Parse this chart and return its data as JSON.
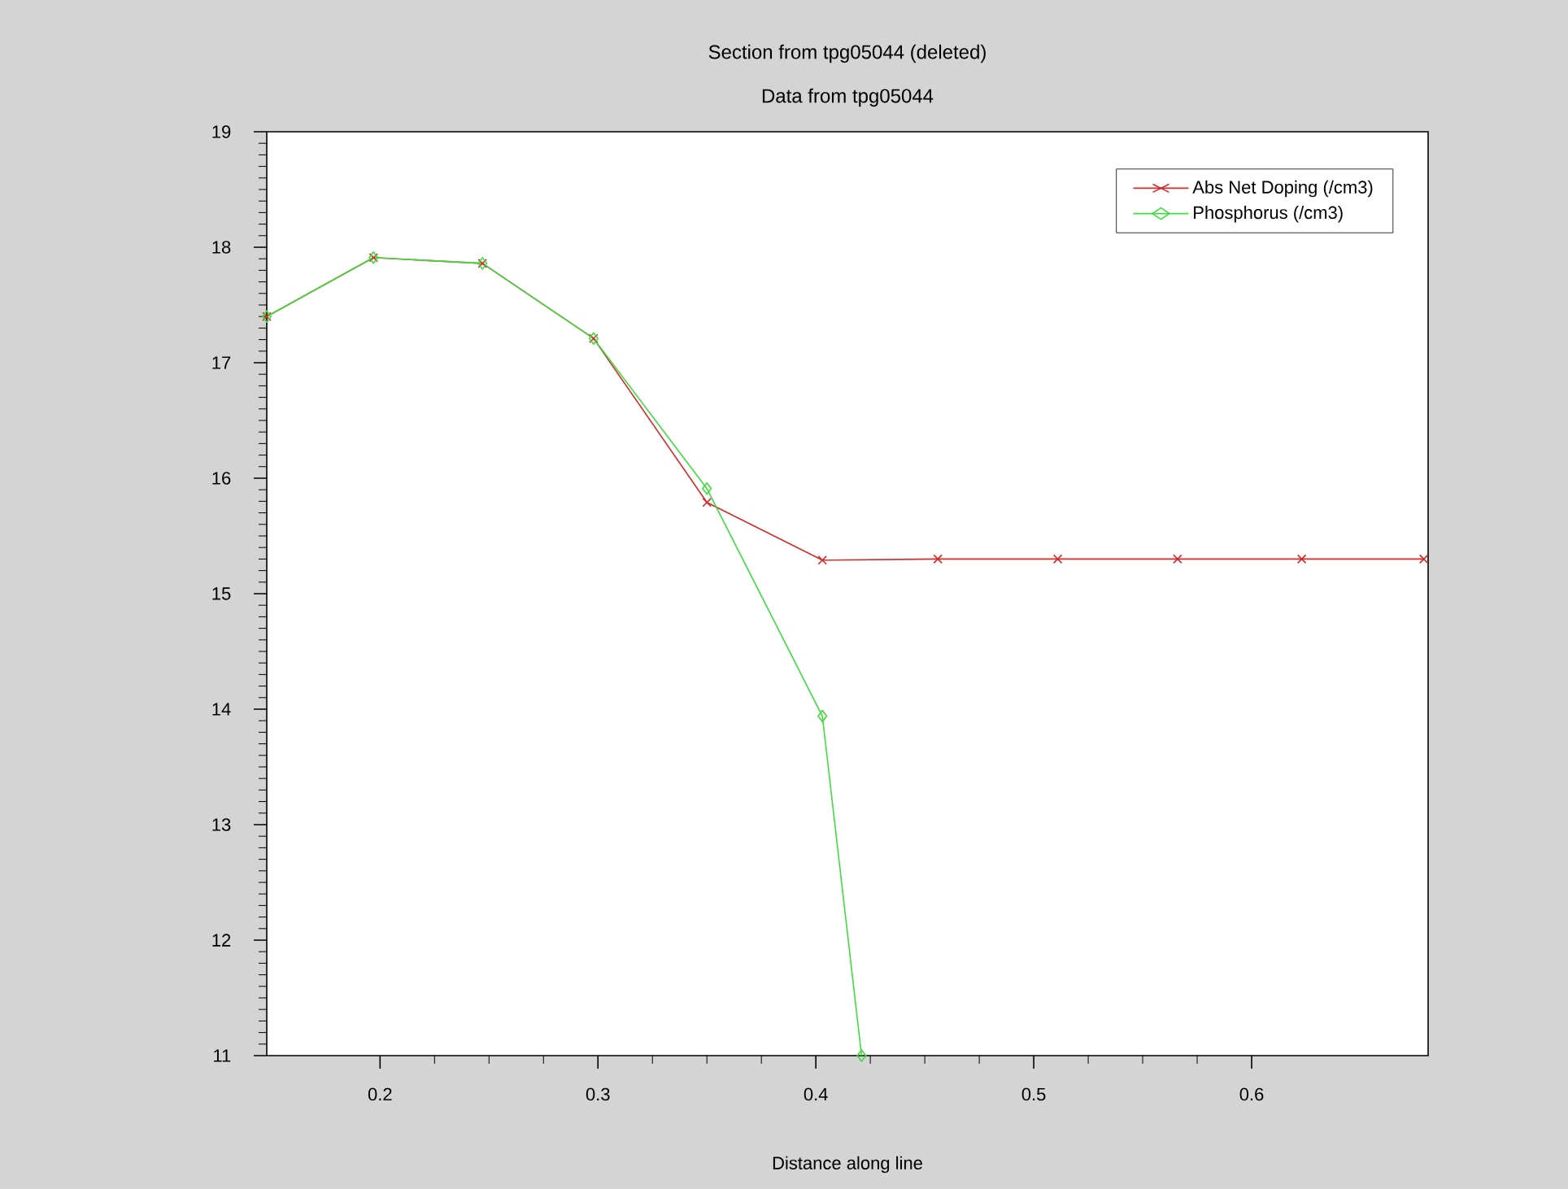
{
  "chart_data": {
    "type": "line",
    "title": "Section from tpg05044 (deleted)",
    "subtitle": "Data from tpg05044",
    "xlabel": "Distance along line",
    "xlim": [
      0.148,
      0.681
    ],
    "ylim": [
      11,
      19
    ],
    "xticks": [
      0.2,
      0.3,
      0.4,
      0.5,
      0.6
    ],
    "yticks": [
      11,
      12,
      13,
      14,
      15,
      16,
      17,
      18,
      19
    ],
    "legend": "top right",
    "line_style": "solid",
    "series": [
      {
        "name": "Abs Net Doping (/cm3)",
        "color": "#d42a2a",
        "marker": "cross",
        "x": [
          0.148,
          0.197,
          0.247,
          0.298,
          0.35,
          0.403,
          0.456,
          0.511,
          0.566,
          0.623,
          0.679
        ],
        "values": [
          17.4,
          17.91,
          17.86,
          17.21,
          15.79,
          15.29,
          15.3,
          15.3,
          15.3,
          15.3,
          15.3
        ]
      },
      {
        "name": "Phosphorus (/cm3)",
        "color": "#3fdc3f",
        "marker": "diamond",
        "x": [
          0.148,
          0.197,
          0.247,
          0.298,
          0.35,
          0.403,
          0.421
        ],
        "values": [
          17.4,
          17.91,
          17.86,
          17.21,
          15.91,
          13.94,
          11
        ]
      }
    ]
  }
}
